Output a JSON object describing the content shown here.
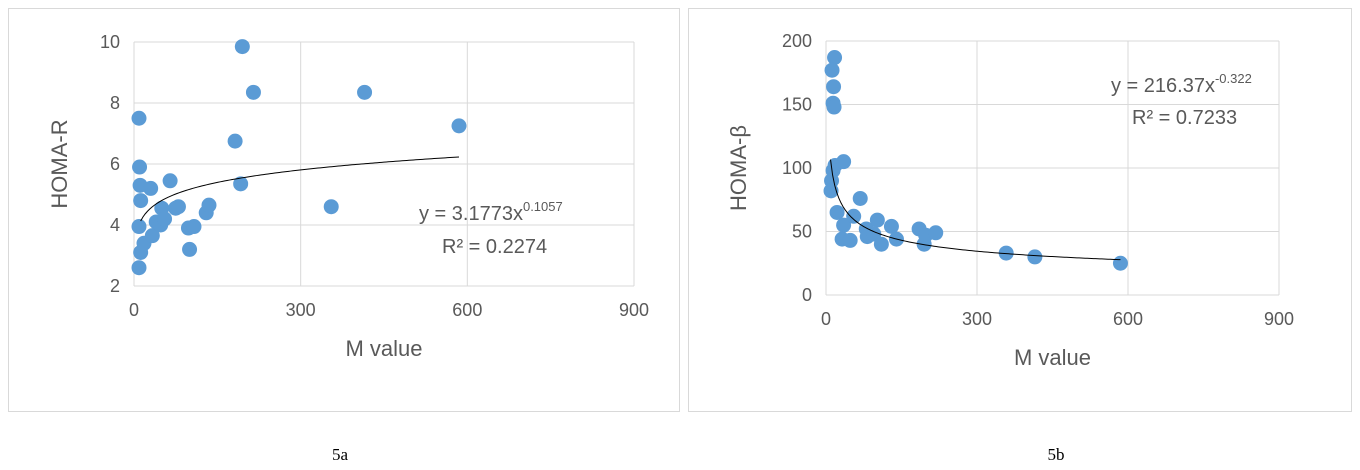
{
  "chart_data": [
    {
      "type": "scatter",
      "caption": "5a",
      "xlabel": "M value",
      "ylabel": "HOMA-R",
      "xlim": [
        0,
        900
      ],
      "ylim": [
        2,
        10
      ],
      "xticks": [
        0,
        300,
        600,
        900
      ],
      "yticks": [
        2,
        4,
        6,
        8,
        10
      ],
      "xtick_labels": [
        "0",
        "300",
        "600",
        "900"
      ],
      "ytick_labels": [
        "2",
        "4",
        "6",
        "8",
        "10"
      ],
      "grid": true,
      "marker_color": "#5b9bd5",
      "trendline": {
        "kind": "power",
        "a": 3.1773,
        "b": 0.1057,
        "x_range": [
          12,
          585
        ]
      },
      "equation": {
        "prefix": "y = 3.1773x",
        "exponent": "0.1057",
        "r2": "R² = 0.2274"
      },
      "points": [
        {
          "x": 9,
          "y": 7.5
        },
        {
          "x": 10,
          "y": 5.9
        },
        {
          "x": 11,
          "y": 5.3
        },
        {
          "x": 12,
          "y": 4.8
        },
        {
          "x": 9,
          "y": 3.95
        },
        {
          "x": 12,
          "y": 3.1
        },
        {
          "x": 9,
          "y": 2.6
        },
        {
          "x": 18,
          "y": 3.4
        },
        {
          "x": 30,
          "y": 5.2
        },
        {
          "x": 33,
          "y": 3.65
        },
        {
          "x": 40,
          "y": 4.1
        },
        {
          "x": 48,
          "y": 4.0
        },
        {
          "x": 50,
          "y": 4.55
        },
        {
          "x": 55,
          "y": 4.2
        },
        {
          "x": 65,
          "y": 5.45
        },
        {
          "x": 75,
          "y": 4.55
        },
        {
          "x": 80,
          "y": 4.6
        },
        {
          "x": 98,
          "y": 3.9
        },
        {
          "x": 100,
          "y": 3.2
        },
        {
          "x": 108,
          "y": 3.95
        },
        {
          "x": 130,
          "y": 4.4
        },
        {
          "x": 135,
          "y": 4.65
        },
        {
          "x": 182,
          "y": 6.75
        },
        {
          "x": 192,
          "y": 5.35
        },
        {
          "x": 195,
          "y": 9.85
        },
        {
          "x": 215,
          "y": 8.35
        },
        {
          "x": 355,
          "y": 4.6
        },
        {
          "x": 415,
          "y": 8.35
        },
        {
          "x": 585,
          "y": 7.25
        }
      ]
    },
    {
      "type": "scatter",
      "caption": "5b",
      "xlabel": "M value",
      "ylabel": "HOMA-β",
      "xlim": [
        0,
        900
      ],
      "ylim": [
        0,
        200
      ],
      "xticks": [
        0,
        300,
        600,
        900
      ],
      "yticks": [
        0,
        50,
        100,
        150,
        200
      ],
      "xtick_labels": [
        "0",
        "300",
        "600",
        "900"
      ],
      "ytick_labels": [
        "0",
        "50",
        "100",
        "150",
        "200"
      ],
      "grid": true,
      "marker_color": "#5b9bd5",
      "trendline": {
        "kind": "power",
        "a": 216.37,
        "b": -0.322,
        "x_range": [
          9,
          585
        ]
      },
      "equation": {
        "prefix": "y = 216.37x",
        "exponent": "-0.322",
        "r2": "R² = 0.7233"
      },
      "points": [
        {
          "x": 17,
          "y": 187
        },
        {
          "x": 12,
          "y": 177
        },
        {
          "x": 15,
          "y": 164
        },
        {
          "x": 14,
          "y": 151
        },
        {
          "x": 16,
          "y": 148
        },
        {
          "x": 18,
          "y": 102
        },
        {
          "x": 14,
          "y": 98
        },
        {
          "x": 11,
          "y": 90
        },
        {
          "x": 10,
          "y": 82
        },
        {
          "x": 35,
          "y": 105
        },
        {
          "x": 22,
          "y": 65
        },
        {
          "x": 35,
          "y": 55
        },
        {
          "x": 32,
          "y": 44
        },
        {
          "x": 48,
          "y": 43
        },
        {
          "x": 55,
          "y": 62
        },
        {
          "x": 68,
          "y": 76
        },
        {
          "x": 80,
          "y": 52
        },
        {
          "x": 82,
          "y": 46
        },
        {
          "x": 95,
          "y": 48
        },
        {
          "x": 102,
          "y": 59
        },
        {
          "x": 110,
          "y": 40
        },
        {
          "x": 130,
          "y": 54
        },
        {
          "x": 140,
          "y": 44
        },
        {
          "x": 185,
          "y": 52
        },
        {
          "x": 195,
          "y": 40
        },
        {
          "x": 198,
          "y": 47
        },
        {
          "x": 218,
          "y": 49
        },
        {
          "x": 358,
          "y": 33
        },
        {
          "x": 415,
          "y": 30
        },
        {
          "x": 585,
          "y": 25
        }
      ]
    }
  ]
}
